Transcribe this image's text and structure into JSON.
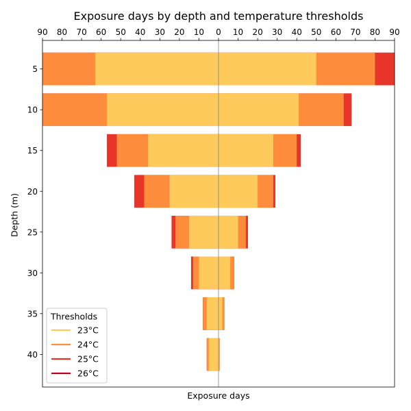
{
  "chart_data": {
    "type": "bar",
    "title": "Exposure days by depth and temperature thresholds",
    "xlabel": "Exposure days",
    "ylabel": "Depth (m)",
    "xlim": [
      -90,
      90
    ],
    "x_ticks": [
      -90,
      -80,
      -70,
      -60,
      -50,
      -40,
      -30,
      -20,
      -10,
      0,
      10,
      20,
      30,
      40,
      50,
      60,
      70,
      80,
      90
    ],
    "x_tick_labels": [
      "90",
      "80",
      "70",
      "60",
      "50",
      "40",
      "30",
      "20",
      "10",
      "0",
      "10",
      "20",
      "30",
      "40",
      "50",
      "60",
      "70",
      "80",
      "90"
    ],
    "ylim": [
      44,
      1.5
    ],
    "depths": [
      5,
      10,
      15,
      20,
      25,
      30,
      35,
      40
    ],
    "y_tick_labels": [
      "5",
      "10",
      "15",
      "20",
      "25",
      "30",
      "35",
      "40"
    ],
    "bar_height": 4,
    "legend": {
      "title": "Thresholds",
      "placement": "lower-left",
      "entries": [
        {
          "label": "23°C",
          "color": "#fdca5b"
        },
        {
          "label": "24°C",
          "color": "#fd8d3c"
        },
        {
          "label": "25°C",
          "color": "#e63529"
        },
        {
          "label": "26°C",
          "color": "#bd0026"
        }
      ]
    },
    "series": [
      {
        "name": "23°C",
        "color": "#fdca5b",
        "left": [
          63,
          57,
          36,
          25,
          15,
          10,
          6,
          5
        ],
        "right": [
          50,
          41,
          28,
          20,
          10,
          6,
          2,
          0.5
        ]
      },
      {
        "name": "24°C",
        "color": "#fd8d3c",
        "left": [
          90,
          90,
          52,
          38,
          22,
          13,
          8,
          6
        ],
        "right": [
          80,
          64,
          40,
          28,
          14,
          8,
          3,
          0.6
        ]
      },
      {
        "name": "25°C",
        "color": "#e63529",
        "left": [
          90,
          90,
          57,
          43,
          24,
          14,
          8,
          6
        ],
        "right": [
          90,
          68,
          42,
          29,
          15,
          8,
          3,
          0.6
        ]
      },
      {
        "name": "26°C",
        "color": "#bd0026",
        "left": [
          90,
          90,
          57,
          43,
          24,
          14,
          8,
          6
        ],
        "right": [
          90,
          68,
          42,
          29,
          15,
          8,
          3,
          0.6
        ]
      }
    ]
  }
}
